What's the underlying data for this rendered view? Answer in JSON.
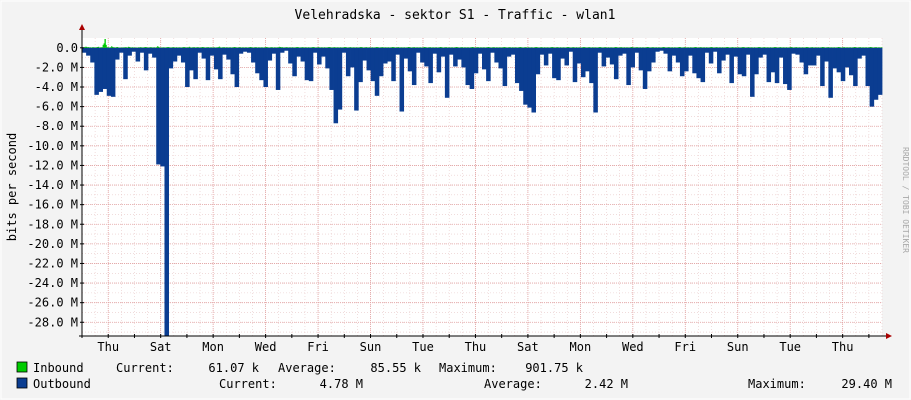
{
  "chart_data": {
    "type": "area",
    "title": "Velehradska - sektor S1 - Traffic - wlan1",
    "ylabel": "bits per second",
    "side_label": "RRDTOOL / TOBI OETIKER",
    "y_ticks": [
      {
        "value": 0,
        "label": "0.0"
      },
      {
        "value": -2000000,
        "label": "-2.0 M"
      },
      {
        "value": -4000000,
        "label": "-4.0 M"
      },
      {
        "value": -6000000,
        "label": "-6.0 M"
      },
      {
        "value": -8000000,
        "label": "-8.0 M"
      },
      {
        "value": -10000000,
        "label": "-10.0 M"
      },
      {
        "value": -12000000,
        "label": "-12.0 M"
      },
      {
        "value": -14000000,
        "label": "-14.0 M"
      },
      {
        "value": -16000000,
        "label": "-16.0 M"
      },
      {
        "value": -18000000,
        "label": "-18.0 M"
      },
      {
        "value": -20000000,
        "label": "-20.0 M"
      },
      {
        "value": -22000000,
        "label": "-22.0 M"
      },
      {
        "value": -24000000,
        "label": "-24.0 M"
      },
      {
        "value": -26000000,
        "label": "-26.0 M"
      },
      {
        "value": -28000000,
        "label": "-28.0 M"
      }
    ],
    "ylim": [
      -29400000,
      1000000
    ],
    "x_ticks": [
      "Thu",
      "Sat",
      "Mon",
      "Wed",
      "Fri",
      "Sun",
      "Tue",
      "Thu",
      "Sat",
      "Mon",
      "Wed",
      "Fri",
      "Sun",
      "Tue",
      "Thu"
    ],
    "x_range_days": [
      0,
      30.5
    ],
    "x_tick_days": [
      1,
      3,
      5,
      7,
      9,
      11,
      13,
      15,
      17,
      19,
      21,
      23,
      25,
      27,
      29
    ],
    "series": [
      {
        "name": "Inbound",
        "color": "#00cc00",
        "current": "61.07 k",
        "average": "85.55 k",
        "maximum": "901.75 k",
        "values": [
          0.05,
          0.02,
          0.08,
          0.1,
          0.1,
          0.05,
          0.07,
          0.04,
          0.05,
          0.03,
          0.04,
          0.06,
          0.05,
          0.03,
          0.04,
          0.05,
          0.08,
          0.1,
          0.02,
          0.04,
          0.05,
          0.05,
          0.3,
          0.45,
          0.9,
          0.3,
          0.05,
          0.06,
          0.04,
          0.03,
          0.05,
          0.15,
          0.08,
          0.05,
          0.04,
          0.03,
          0.05,
          0.08,
          0.04,
          0.03,
          0.02,
          0.03,
          0.04,
          0.03,
          0.05,
          0.04,
          0.06,
          0.04,
          0.03,
          0.1,
          0.08,
          0.04,
          0.03,
          0.05,
          0.04,
          0.03,
          0.04,
          0.03,
          0.02,
          0.03,
          0.05,
          0.04,
          0.06,
          0.04,
          0.03,
          0.04,
          0.05,
          0.08,
          0.06,
          0.04,
          0.03,
          0.04,
          0.05,
          0.06,
          0.04,
          0.03,
          0.05,
          0.04,
          0.03,
          0.05,
          0.15,
          0.1,
          0.04,
          0.03,
          0.04,
          0.03,
          0.05,
          0.04,
          0.03,
          0.04,
          0.05,
          0.08,
          0.06,
          0.04,
          0.03,
          0.04,
          0.05,
          0.06,
          0.04,
          0.03,
          0.05,
          0.04,
          0.03,
          0.05,
          0.04,
          0.03,
          0.04,
          0.05,
          0.08,
          0.06,
          0.04,
          0.03,
          0.05,
          0.04,
          0.1,
          0.04,
          0.03,
          0.04,
          0.05,
          0.06,
          0.04,
          0.03,
          0.05,
          0.06,
          0.04,
          0.03,
          0.04,
          0.05,
          0.08,
          0.06,
          0.04,
          0.03,
          0.04,
          0.05,
          0.06,
          0.04,
          0.03,
          0.05,
          0.04,
          0.03,
          0.05,
          0.04,
          0.03,
          0.04,
          0.05,
          0.06,
          0.12,
          0.04,
          0.03,
          0.04,
          0.05,
          0.06,
          0.04,
          0.03,
          0.05,
          0.04,
          0.03,
          0.05,
          0.04,
          0.03,
          0.04,
          0.05,
          0.08,
          0.06,
          0.04,
          0.03,
          0.04,
          0.05,
          0.06,
          0.04,
          0.03,
          0.05,
          0.04,
          0.03,
          0.05,
          0.04,
          0.03,
          0.04,
          0.05,
          0.08,
          0.06,
          0.04,
          0.03,
          0.04,
          0.05,
          0.06,
          0.04,
          0.03,
          0.05,
          0.04,
          0.03,
          0.05,
          0.04,
          0.03,
          0.04,
          0.05,
          0.08,
          0.06,
          0.04,
          0.03,
          0.04,
          0.05,
          0.06,
          0.04,
          0.03,
          0.05,
          0.04,
          0.03,
          0.05,
          0.04,
          0.1,
          0.08,
          0.05,
          0.06,
          0.04,
          0.03,
          0.04,
          0.05,
          0.06,
          0.04,
          0.03,
          0.05,
          0.04,
          0.03,
          0.05,
          0.04,
          0.03,
          0.04,
          0.05,
          0.08,
          0.06,
          0.04,
          0.03,
          0.04,
          0.05,
          0.06,
          0.04,
          0.03,
          0.05,
          0.04,
          0.03,
          0.05,
          0.04,
          0.03,
          0.04,
          0.05,
          0.08,
          0.06,
          0.04,
          0.03,
          0.04,
          0.05,
          0.06,
          0.04,
          0.03,
          0.05,
          0.04,
          0.03,
          0.05,
          0.04,
          0.03,
          0.04,
          0.05,
          0.08,
          0.06,
          0.04,
          0.03,
          0.04,
          0.05,
          0.06,
          0.04,
          0.03,
          0.05,
          0.04,
          0.03,
          0.05,
          0.04,
          0.03,
          0.04,
          0.05,
          0.08,
          0.06,
          0.04,
          0.03,
          0.04,
          0.05,
          0.06,
          0.04,
          0.03,
          0.05,
          0.04,
          0.03,
          0.05,
          0.04,
          0.03,
          0.04,
          0.05,
          0.08,
          0.06,
          0.04,
          0.03,
          0.04,
          0.05,
          0.06,
          0.04,
          0.03,
          0.05,
          0.04,
          0.03,
          0.05,
          0.04,
          0.03,
          0.04,
          0.05,
          0.08,
          0.06,
          0.04,
          0.03,
          0.04,
          0.05,
          0.06,
          0.04,
          0.03,
          0.05,
          0.04,
          0.03,
          0.05,
          0.04,
          0.03,
          0.04,
          0.05,
          0.08,
          0.06,
          0.04,
          0.03,
          0.04,
          0.05,
          0.06,
          0.04,
          0.03,
          0.05,
          0.04,
          0.03,
          0.05,
          0.04,
          0.03,
          0.04,
          0.05,
          0.08,
          0.06,
          0.04,
          0.03,
          0.04,
          0.05,
          0.06,
          0.04,
          0.03,
          0.05,
          0.04,
          0.03,
          0.05,
          0.04,
          0.03,
          0.04,
          0.05,
          0.08,
          0.06,
          0.04,
          0.03,
          0.04,
          0.05,
          0.06,
          0.04,
          0.03,
          0.05,
          0.04,
          0.03,
          0.05,
          0.04,
          0.03,
          0.04,
          0.05,
          0.08,
          0.06,
          0.04,
          0.03,
          0.04,
          0.05,
          0.06,
          0.04,
          0.03,
          0.05,
          0.04,
          0.03,
          0.05,
          0.04,
          0.03,
          0.04,
          0.05,
          0.08,
          0.06,
          0.04,
          0.03,
          0.04,
          0.05,
          0.06,
          0.04,
          0.03,
          0.05,
          0.04,
          0.03,
          0.05,
          0.04,
          0.03,
          0.04,
          0.05,
          0.08,
          0.06,
          0.04,
          0.03,
          0.04,
          0.05,
          0.06,
          0.04,
          0.03,
          0.05,
          0.04,
          0.03,
          0.05,
          0.04,
          0.03,
          0.04,
          0.05,
          0.08,
          0.06,
          0.04,
          0.03,
          0.04,
          0.05,
          0.06,
          0.04,
          0.03,
          0.05,
          0.04,
          0.03,
          0.05,
          0.04,
          0.03,
          0.04,
          0.05,
          0.08,
          0.06,
          0.04,
          0.03,
          0.04,
          0.05,
          0.06,
          0.04,
          0.03,
          0.05,
          0.04,
          0.03,
          0.05,
          0.04,
          0.03,
          0.04,
          0.05,
          0.08,
          0.06,
          0.04,
          0.03,
          0.04,
          0.05,
          0.06,
          0.04,
          0.03,
          0.05,
          0.04,
          0.03,
          0.05,
          0.04,
          0.03,
          0.04,
          0.05,
          0.08,
          0.06,
          0.04,
          0.03,
          0.04,
          0.05,
          0.06,
          0.04,
          0.03,
          0.05,
          0.04,
          0.03,
          0.05,
          0.04,
          0.03,
          0.04,
          0.05,
          0.08,
          0.06,
          0.04,
          0.03,
          0.04,
          0.05,
          0.06,
          0.04,
          0.03,
          0.05,
          0.04,
          0.03,
          0.05,
          0.04,
          0.03,
          0.04,
          0.05,
          0.08,
          0.06,
          0.04,
          0.03,
          0.04,
          0.05,
          0.06,
          0.04,
          0.03,
          0.05,
          0.04,
          0.03,
          0.05,
          0.04,
          0.03,
          0.04,
          0.05,
          0.08,
          0.06,
          0.04,
          0.03,
          0.04,
          0.05,
          0.06,
          0.04,
          0.03,
          0.05,
          0.04,
          0.03,
          0.05,
          0.04,
          0.03,
          0.04,
          0.05,
          0.08,
          0.06,
          0.04,
          0.03,
          0.04,
          0.05,
          0.06,
          0.04,
          0.03,
          0.05,
          0.04,
          0.03,
          0.05,
          0.04,
          0.03,
          0.04,
          0.05,
          0.08,
          0.06,
          0.04,
          0.03,
          0.04,
          0.05,
          0.06,
          0.04,
          0.03,
          0.05,
          0.04,
          0.03,
          0.05,
          0.04,
          0.03,
          0.04,
          0.05,
          0.08,
          0.06,
          0.04,
          0.03,
          0.04,
          0.05,
          0.06,
          0.04,
          0.03,
          0.05,
          0.04,
          0.03,
          0.05,
          0.04,
          0.03,
          0.04,
          0.05,
          0.08,
          0.06,
          0.04,
          0.03,
          0.04,
          0.05,
          0.06,
          0.04,
          0.03,
          0.05,
          0.04,
          0.03,
          0.05,
          0.04,
          0.03,
          0.04,
          0.05,
          0.08,
          0.06,
          0.04,
          0.03,
          0.04,
          0.05,
          0.06,
          0.04,
          0.03,
          0.05,
          0.04,
          0.03,
          0.05,
          0.04,
          0.03,
          0.04,
          0.05,
          0.08,
          0.06,
          0.04,
          0.03,
          0.04,
          0.05,
          0.06,
          0.04,
          0.03,
          0.05,
          0.04,
          0.03,
          0.05,
          0.04,
          0.03,
          0.04,
          0.05,
          0.08,
          0.06,
          0.04,
          0.03,
          0.04,
          0.05,
          0.06,
          0.04,
          0.03,
          0.05,
          0.04,
          0.03,
          0.05,
          0.04,
          0.03,
          0.04,
          0.05,
          0.08,
          0.06,
          0.04,
          0.03,
          0.04,
          0.05,
          0.06,
          0.04,
          0.03,
          0.05,
          0.04,
          0.03,
          0.05,
          0.04,
          0.03,
          0.04,
          0.05,
          0.08,
          0.06,
          0.04,
          0.03,
          0.04,
          0.05,
          0.06,
          0.04,
          0.03,
          0.05,
          0.04,
          0.03,
          0.05,
          0.04,
          0.03,
          0.04,
          0.05,
          0.08,
          0.06,
          0.04,
          0.03,
          0.04,
          0.05,
          0.06,
          0.04,
          0.03,
          0.05,
          0.04,
          0.03,
          0.05,
          0.04,
          0.03,
          0.04,
          0.05,
          0.08,
          0.06,
          0.04,
          0.03,
          0.04,
          0.05,
          0.06,
          0.04,
          0.03,
          0.05,
          0.04,
          0.03,
          0.05,
          0.04,
          0.03,
          0.04,
          0.05,
          0.08,
          0.06,
          0.04,
          0.03,
          0.04,
          0.05,
          0.06,
          0.04,
          0.03,
          0.05,
          0.04,
          0.03,
          0.05,
          0.04,
          0.03,
          0.04,
          0.05,
          0.08,
          0.06,
          0.04,
          0.03,
          0.04,
          0.05,
          0.06,
          0.04,
          0.03,
          0.05,
          0.04,
          0.03,
          0.05,
          0.04,
          0.03,
          0.04,
          0.05,
          0.08,
          0.06,
          0.04,
          0.03,
          0.04,
          0.05,
          0.06,
          0.04,
          0.03,
          0.05,
          0.04,
          0.03,
          0.05,
          0.04,
          0.03,
          0.04,
          0.05,
          0.08,
          0.06,
          0.04,
          0.03,
          0.04,
          0.05,
          0.06,
          0.04,
          0.03,
          0.05,
          0.04,
          0.03,
          0.05,
          0.04,
          0.03,
          0.04,
          0.05,
          0.08,
          0.06,
          0.04,
          0.03,
          0.04,
          0.05,
          0.06,
          0.04,
          0.03,
          0.05,
          0.04,
          0.03,
          0.05,
          0.04,
          0.03,
          0.04,
          0.05,
          0.08,
          0.06,
          0.04,
          0.03,
          0.04,
          0.05,
          0.06,
          0.04,
          0.03,
          0.05,
          0.04,
          0.03,
          0.05,
          0.04,
          0.03,
          0.04,
          0.05,
          0.08,
          0.06,
          0.04,
          0.03,
          0.04,
          0.05,
          0.06,
          0.04,
          0.03,
          0.05,
          0.04,
          0.03,
          0.05
        ]
      },
      {
        "name": "Outbound",
        "color": "#0b3d91",
        "current": "4.78 M",
        "average": "2.42 M",
        "maximum": "29.40 M",
        "values": [
          -0.5,
          -0.8,
          -1.5,
          -4.8,
          -4.5,
          -4.2,
          -4.9,
          -5.0,
          -1.2,
          -0.5,
          -3.2,
          -0.8,
          -0.4,
          -1.4,
          -0.5,
          -2.3,
          -0.6,
          -1.0,
          -11.9,
          -12.1,
          -29.4,
          -2.1,
          -1.4,
          -0.8,
          -1.5,
          -4.0,
          -2.3,
          -3.2,
          -0.5,
          -1.1,
          -3.3,
          -0.8,
          -2.2,
          -3.2,
          -0.7,
          -1.2,
          -2.7,
          -4.0,
          -0.6,
          -0.4,
          -0.5,
          -1.5,
          -2.6,
          -3.3,
          -4.0,
          -1.3,
          -0.6,
          -4.3,
          -0.5,
          -0.3,
          -1.6,
          -2.9,
          -0.9,
          -1.4,
          -3.3,
          -3.4,
          -0.5,
          -1.7,
          -0.9,
          -2.1,
          -4.3,
          -7.7,
          -6.3,
          -0.5,
          -2.9,
          -2.0,
          -6.4,
          -3.5,
          -1.3,
          -2.3,
          -3.4,
          -4.9,
          -2.9,
          -1.6,
          -1.4,
          -3.4,
          -0.7,
          -6.5,
          -1.1,
          -2.4,
          -3.8,
          -0.5,
          -1.5,
          -1.9,
          -3.6,
          -0.6,
          -2.5,
          -0.9,
          -5.1,
          -0.7,
          -1.9,
          -1.2,
          -2.0,
          -3.8,
          -4.2,
          -2.6,
          -0.6,
          -2.2,
          -3.4,
          -0.5,
          -1.5,
          -2.1,
          -3.9,
          -0.9,
          -0.7,
          -3.6,
          -4.4,
          -5.8,
          -6.1,
          -6.6,
          -2.7,
          -0.7,
          -1.8,
          -0.6,
          -3.1,
          -3.3,
          -1.1,
          -1.8,
          -0.4,
          -3.5,
          -1.6,
          -3.0,
          -2.4,
          -3.6,
          -6.6,
          -0.5,
          -1.9,
          -1.0,
          -1.7,
          -3.2,
          -0.8,
          -0.6,
          -3.8,
          -2.0,
          -0.5,
          -2.3,
          -4.2,
          -2.4,
          -1.5,
          -0.4,
          -0.3,
          -0.6,
          -2.4,
          -0.8,
          -1.5,
          -2.9,
          -2.4,
          -0.8,
          -2.6,
          -3.1,
          -3.5,
          -0.5,
          -1.6,
          -0.4,
          -2.6,
          -1.3,
          -0.7,
          -3.6,
          -0.9,
          -2.7,
          -2.9,
          -0.7,
          -5.0,
          -2.7,
          -1.0,
          -0.7,
          -3.5,
          -2.5,
          -3.6,
          -1.0,
          -3.7,
          -4.3,
          -0.6,
          -0.7,
          -1.5,
          -2.7,
          -1.8,
          -1.8,
          -0.8,
          -3.9,
          -1.4,
          -5.1,
          -2.1,
          -2.5,
          -3.4,
          -2.0,
          -2.8,
          -3.9,
          -1.1,
          -0.8,
          -3.9,
          -6.0,
          -5.3,
          -4.8
        ]
      }
    ]
  }
}
